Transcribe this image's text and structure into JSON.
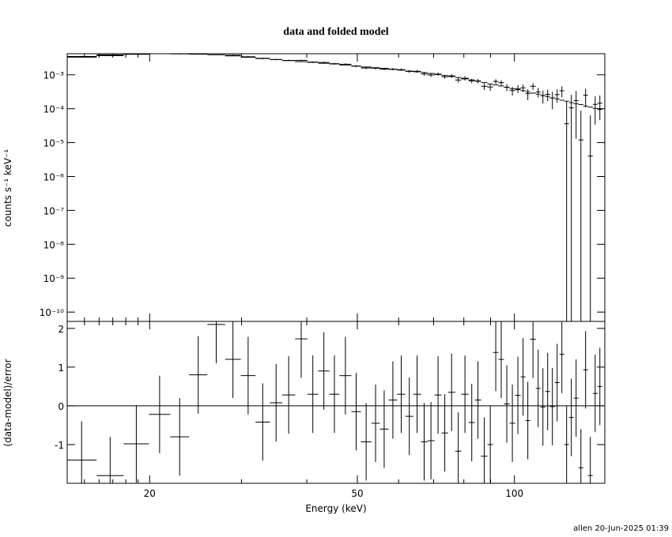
{
  "footer": "allen 20-Jun-2025 01:39",
  "chart_data": [
    {
      "type": "spectrum",
      "title": "data and folded model",
      "ylabel": "counts s⁻¹ keV⁻¹",
      "xlog": true,
      "ylog": true,
      "xlim": [
        13.9,
        149
      ],
      "ylim": [
        5.3e-11,
        0.0042
      ],
      "xticks": [
        20,
        50,
        100
      ],
      "xminorticks": [
        15,
        16,
        17,
        18,
        19,
        30,
        40,
        60,
        70,
        80,
        90
      ],
      "yticks": [
        {
          "value": 1e-10,
          "label": "10⁻¹⁰"
        },
        {
          "value": 1e-09,
          "label": "10⁻⁹"
        },
        {
          "value": 1e-08,
          "label": "10⁻⁸"
        },
        {
          "value": 1e-07,
          "label": "10⁻⁷"
        },
        {
          "value": 1e-06,
          "label": "10⁻⁶"
        },
        {
          "value": 1e-05,
          "label": "10⁻⁵"
        },
        {
          "value": 0.0001,
          "label": "10⁻⁴"
        },
        {
          "value": 0.001,
          "label": "10⁻³"
        }
      ],
      "color": "#000000",
      "model_color": "#000000",
      "bin_edges": [
        13.86,
        15.83,
        17.83,
        19.94,
        21.9,
        23.8,
        25.8,
        27.9,
        29.9,
        31.9,
        34.0,
        35.9,
        38.0,
        40.1,
        42.1,
        44.2,
        46.2,
        48.7,
        50.8,
        53.2,
        55.2,
        57.4,
        59.6,
        61.8,
        64.0,
        66.2,
        68.1,
        70.3,
        72.5,
        74.6,
        77.0,
        79.1,
        81.7,
        84.0,
        86.3,
        88.8,
        91.0,
        93.2,
        95.5,
        97.9,
        100.3,
        102.8,
        105.0,
        107.2,
        109.9,
        112.2,
        114.6,
        117.0,
        119.5,
        122.0,
        124.6,
        127.2,
        129.9,
        132.7,
        135.5,
        138.3,
        141.3,
        144.3,
        147.3
      ],
      "data": [
        0.00332,
        0.00367,
        0.00404,
        0.00424,
        0.00415,
        0.00419,
        0.00421,
        0.00381,
        0.00342,
        0.00303,
        0.00283,
        0.00267,
        0.00267,
        0.00238,
        0.00231,
        0.00213,
        0.00205,
        0.0018,
        0.00159,
        0.00157,
        0.00148,
        0.00147,
        0.00142,
        0.00126,
        0.00127,
        0.00106,
        0.00099,
        0.00105,
        0.000878,
        0.00093,
        0.000703,
        0.000792,
        0.000665,
        0.000661,
        0.000459,
        0.000437,
        0.000639,
        0.000588,
        0.000432,
        0.000344,
        0.00039,
        0.000414,
        0.000278,
        0.00046,
        0.000314,
        0.000242,
        0.000266,
        0.000207,
        0.000261,
        0.000338,
        3.6e-05,
        0.000106,
        0.000173,
        1.2e-05,
        0.00025,
        4e-06,
        0.000134,
        0.000146
      ],
      "errors": [
        0.000104,
        0.00012,
        0.00013,
        0.00014,
        0.00015,
        0.00015,
        0.00015,
        0.00015,
        0.00014,
        0.00014,
        0.00013,
        0.00013,
        0.00013,
        0.00013,
        0.00013,
        0.00013,
        0.00013,
        0.00012,
        0.00012,
        0.00012,
        0.00012,
        0.00012,
        0.00012,
        0.00012,
        0.00012,
        0.00012,
        0.00012,
        0.00012,
        0.00011,
        0.00011,
        0.00011,
        0.00011,
        0.0001,
        0.0001,
        0.0001,
        0.0001,
        0.0001,
        0.0001,
        0.0001,
        0.0001,
        0.0001,
        0.0001,
        0.0001,
        0.0001,
        0.0001,
        0.0001,
        0.0001,
        0.00011,
        0.00011,
        0.00012,
        0.00013,
        0.00015,
        0.00016,
        7.5e-05,
        0.00014,
        6e-05,
        0.0001,
        0.0001
      ],
      "model": [
        0.00347,
        0.00389,
        0.00417,
        0.00427,
        0.00427,
        0.00407,
        0.00389,
        0.00363,
        0.00331,
        0.00309,
        0.00282,
        0.00263,
        0.00245,
        0.00234,
        0.00219,
        0.00209,
        0.00195,
        0.00182,
        0.0017,
        0.00162,
        0.00155,
        0.00145,
        0.00138,
        0.00129,
        0.00123,
        0.00117,
        0.0011,
        0.00102,
        0.000955,
        0.000891,
        0.000832,
        0.000759,
        0.000708,
        0.000646,
        0.000589,
        0.000537,
        0.000501,
        0.000468,
        0.000427,
        0.000389,
        0.000363,
        0.000339,
        0.000316,
        0.000288,
        0.000269,
        0.000245,
        0.000229,
        0.000209,
        0.000195,
        0.000178,
        0.000166,
        0.000151,
        0.000141,
        0.000132,
        0.00012,
        0.000112,
        0.000102,
        9.55e-05
      ]
    },
    {
      "type": "residual",
      "xlabel": "Energy (keV)",
      "ylabel": "(data-model)/error",
      "xlog": true,
      "xlim": [
        13.9,
        149
      ],
      "ylim": [
        -2,
        2.18
      ],
      "xticks": [
        20,
        50,
        100
      ],
      "xminorticks": [
        15,
        16,
        17,
        18,
        19,
        30,
        40,
        60,
        70,
        80,
        90
      ],
      "yticks": [
        -1,
        0,
        1,
        2
      ],
      "color": "#000000",
      "zero_line": {
        "value": 0,
        "color": "#00c800"
      },
      "bin_edges": [
        13.86,
        15.83,
        17.83,
        19.94,
        21.9,
        23.8,
        25.8,
        27.9,
        29.9,
        31.9,
        34.0,
        35.9,
        38.0,
        40.1,
        42.1,
        44.2,
        46.2,
        48.7,
        50.8,
        53.2,
        55.2,
        57.4,
        59.6,
        61.8,
        64.0,
        66.2,
        68.1,
        70.3,
        72.5,
        74.6,
        77.0,
        79.1,
        81.7,
        84.0,
        86.3,
        88.8,
        91.0,
        93.2,
        95.5,
        97.9,
        100.3,
        102.8,
        105.0,
        107.2,
        109.9,
        112.2,
        114.6,
        117.0,
        119.5,
        122.0,
        124.6,
        127.2,
        129.9,
        132.7,
        135.5,
        138.3,
        141.3,
        144.3,
        147.3
      ],
      "residuals": [
        -1.4,
        -1.8,
        -0.98,
        -0.22,
        -0.8,
        0.8,
        2.1,
        1.2,
        0.78,
        -0.42,
        0.08,
        0.28,
        1.73,
        0.3,
        0.9,
        0.3,
        0.78,
        -0.15,
        -0.93,
        -0.45,
        -0.6,
        0.15,
        0.3,
        -0.27,
        0.3,
        -0.93,
        -0.9,
        0.28,
        -0.7,
        0.35,
        -1.17,
        0.3,
        -0.43,
        0.15,
        -1.3,
        -1.0,
        1.38,
        1.2,
        0.05,
        -0.45,
        0.27,
        0.75,
        -0.38,
        1.72,
        0.45,
        -0.03,
        0.37,
        -0.02,
        0.6,
        1.33,
        -1.0,
        -0.3,
        0.2,
        -1.6,
        0.93,
        -1.8,
        0.32,
        0.5
      ],
      "errors": [
        1,
        1,
        1,
        1,
        1,
        1,
        1,
        1,
        1,
        1,
        1,
        1,
        1,
        1,
        1,
        1,
        1,
        1,
        1,
        1,
        1,
        1,
        1,
        1,
        1,
        1,
        1,
        1,
        1,
        1,
        1,
        1,
        1,
        1,
        1,
        1,
        1,
        1,
        1,
        1,
        1,
        1,
        1,
        1,
        1,
        1,
        1,
        1,
        1,
        1,
        1,
        1,
        1,
        1,
        1,
        1,
        1,
        1
      ]
    }
  ]
}
